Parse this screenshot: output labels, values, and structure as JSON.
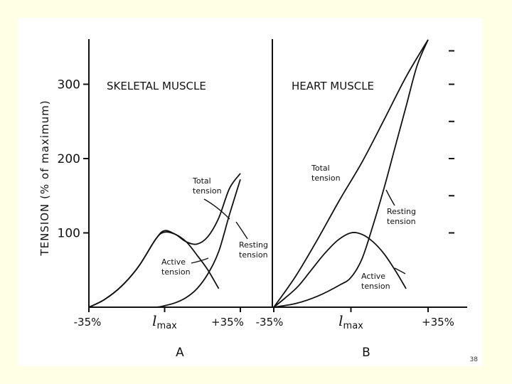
{
  "page": {
    "number": "38"
  },
  "chart_data": [
    {
      "panel": "A",
      "type": "line",
      "title": "SKELETAL MUSCLE",
      "ylabel": "TENSION (% of maximum)",
      "xlabel": "",
      "x_ticks": [
        "-35%",
        "l max",
        "+35%"
      ],
      "y_ticks": [
        100,
        200,
        300
      ],
      "xlim": [
        -35,
        35
      ],
      "ylim": [
        0,
        360
      ],
      "grid": false,
      "series": [
        {
          "name": "Total tension",
          "x": [
            -35,
            -28,
            -20,
            -12,
            -4,
            0,
            5,
            10,
            15,
            20,
            25,
            30,
            35
          ],
          "y": [
            0,
            10,
            28,
            55,
            92,
            103,
            98,
            88,
            85,
            95,
            120,
            160,
            180
          ]
        },
        {
          "name": "Resting tension",
          "x": [
            -35,
            -14,
            -4,
            0,
            5,
            10,
            15,
            20,
            25,
            30,
            35
          ],
          "y": [
            0,
            0,
            0,
            2,
            6,
            13,
            25,
            45,
            75,
            125,
            172
          ]
        },
        {
          "name": "Active tension",
          "x": [
            -35,
            -28,
            -20,
            -12,
            -4,
            0,
            5,
            10,
            15,
            20,
            25
          ],
          "y": [
            0,
            10,
            28,
            55,
            92,
            101,
            98,
            88,
            70,
            50,
            25
          ]
        }
      ]
    },
    {
      "panel": "B",
      "type": "line",
      "title": "HEART MUSCLE",
      "xlabel": "",
      "x_ticks": [
        "-35%",
        "l max",
        "+35%"
      ],
      "xlim": [
        -35,
        35
      ],
      "ylim": [
        0,
        360
      ],
      "grid": false,
      "series": [
        {
          "name": "Total tension",
          "x": [
            -35,
            -25,
            -15,
            -5,
            5,
            15,
            25,
            35
          ],
          "y": [
            0,
            42,
            92,
            145,
            195,
            252,
            310,
            360
          ]
        },
        {
          "name": "Resting tension",
          "x": [
            -35,
            -25,
            -15,
            -5,
            0,
            5,
            10,
            15,
            20,
            25,
            30,
            35
          ],
          "y": [
            0,
            5,
            15,
            30,
            40,
            65,
            110,
            160,
            215,
            270,
            325,
            360
          ]
        },
        {
          "name": "Active tension",
          "x": [
            -35,
            -30,
            -24,
            -18,
            -12,
            -6,
            0,
            5,
            10,
            15,
            20,
            25
          ],
          "y": [
            0,
            12,
            28,
            50,
            72,
            90,
            100,
            98,
            88,
            72,
            50,
            25
          ]
        }
      ]
    }
  ]
}
